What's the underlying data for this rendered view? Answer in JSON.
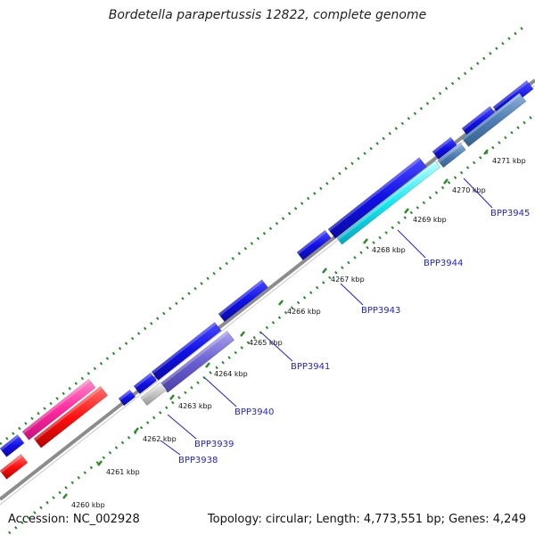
{
  "title": "Bordetella parapertussis 12822, complete genome",
  "footer": {
    "accession": "Accession: NC_002928",
    "topology": "Topology: circular; Length: 4,773,551 bp; Genes: 4,249"
  },
  "colors": {
    "backbone": "#8c8c8c",
    "tick": "#2a8a2a",
    "forward_gene": "#1212e8",
    "label": "#1f1fd0"
  },
  "ruler": [
    {
      "label": "4260 kbp"
    },
    {
      "label": "4261 kbp"
    },
    {
      "label": "4262 kbp"
    },
    {
      "label": "4263 kbp"
    },
    {
      "label": "4264 kbp"
    },
    {
      "label": "4265 kbp"
    },
    {
      "label": "4266 kbp"
    },
    {
      "label": "4267 kbp"
    },
    {
      "label": "4268 kbp"
    },
    {
      "label": "4269 kbp"
    },
    {
      "label": "4270 kbp"
    },
    {
      "label": "4271 kbp"
    }
  ],
  "gene_labels": [
    {
      "name": "BPP3938"
    },
    {
      "name": "BPP3939"
    },
    {
      "name": "BPP3940"
    },
    {
      "name": "BPP3941"
    },
    {
      "name": "BPP3943"
    },
    {
      "name": "BPP3944"
    },
    {
      "name": "BPP3945"
    }
  ]
}
